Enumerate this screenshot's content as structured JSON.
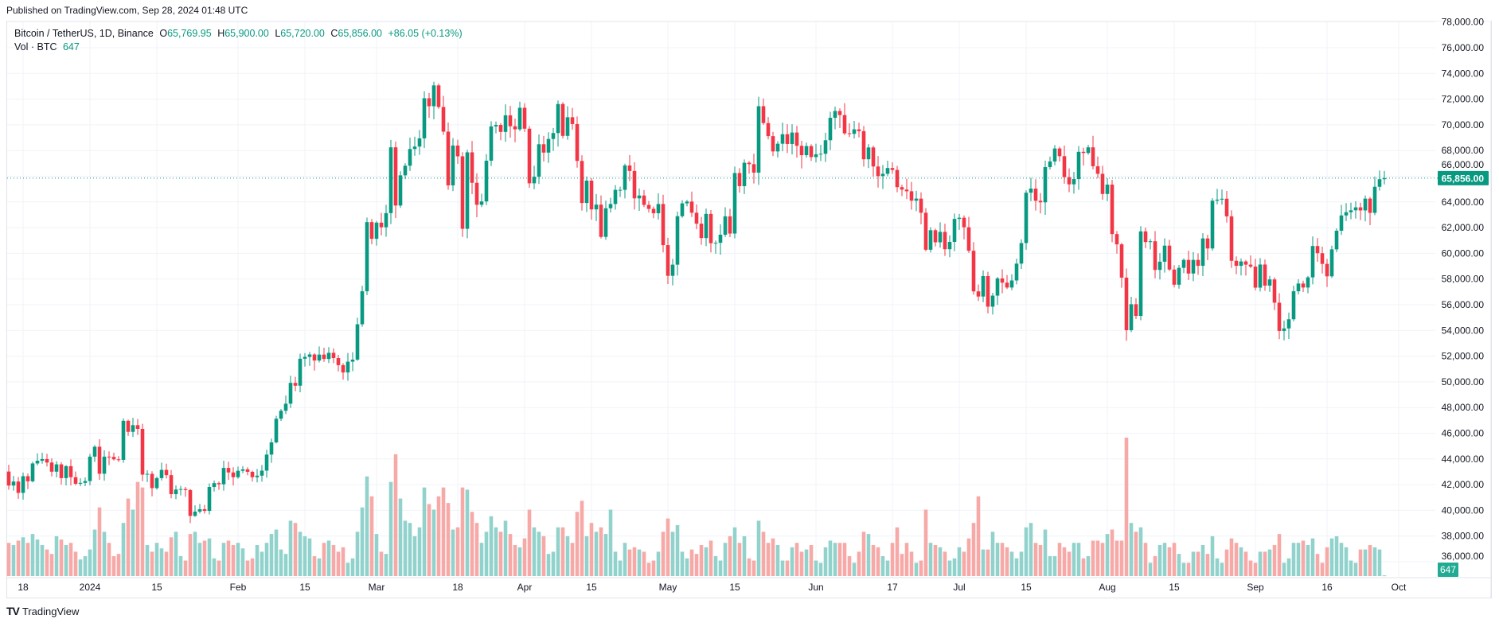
{
  "published": "Published on TradingView.com, Sep 28, 2024 01:48 UTC",
  "legend": {
    "symbol": "Bitcoin / TetherUS, 1D, Binance",
    "o_label": "O",
    "o": "65,769.95",
    "h_label": "H",
    "h": "65,900.00",
    "l_label": "L",
    "l": "65,720.00",
    "c_label": "C",
    "c": "65,856.00",
    "change": "+86.05 (+0.13%)",
    "vol_label": "Vol · BTC",
    "vol": "647"
  },
  "footer": {
    "brand": "TradingView",
    "logo_text": "TV"
  },
  "colors": {
    "up": "#089981",
    "down": "#F23645",
    "vol_up": "#92D2CC",
    "vol_down": "#F7A9A7",
    "grid": "#F0F3FA"
  },
  "chart_data": {
    "type": "candlestick",
    "title": "Bitcoin / TetherUS, 1D, Binance",
    "start_date": "2023-12-15",
    "interval": "1D",
    "ylim": [
      35000,
      78000
    ],
    "price_ticks": [
      "36,000.00",
      "38,000.00",
      "40,000.00",
      "42,000.00",
      "44,000.00",
      "46,000.00",
      "48,000.00",
      "50,000.00",
      "52,000.00",
      "54,000.00",
      "56,000.00",
      "58,000.00",
      "60,000.00",
      "62,000.00",
      "64,000.00",
      "66,000.00",
      "68,000.00",
      "70,000.00",
      "72,000.00",
      "74,000.00",
      "76,000.00",
      "78,000.00"
    ],
    "last_price_label": "65,856.00",
    "last_price": 65856,
    "last_volume_label": "647",
    "time_ticks": [
      {
        "label": "18",
        "date": "2023-12-18"
      },
      {
        "label": "2024",
        "date": "2024-01-01"
      },
      {
        "label": "15",
        "date": "2024-01-15"
      },
      {
        "label": "Feb",
        "date": "2024-02-01"
      },
      {
        "label": "15",
        "date": "2024-02-15"
      },
      {
        "label": "Mar",
        "date": "2024-03-01"
      },
      {
        "label": "18",
        "date": "2024-03-18"
      },
      {
        "label": "Apr",
        "date": "2024-04-01"
      },
      {
        "label": "15",
        "date": "2024-04-15"
      },
      {
        "label": "May",
        "date": "2024-05-01"
      },
      {
        "label": "15",
        "date": "2024-05-15"
      },
      {
        "label": "Jun",
        "date": "2024-06-01"
      },
      {
        "label": "17",
        "date": "2024-06-17"
      },
      {
        "label": "Jul",
        "date": "2024-07-01"
      },
      {
        "label": "15",
        "date": "2024-07-15"
      },
      {
        "label": "Aug",
        "date": "2024-08-01"
      },
      {
        "label": "15",
        "date": "2024-08-15"
      },
      {
        "label": "Sep",
        "date": "2024-09-01"
      },
      {
        "label": "16",
        "date": "2024-09-16"
      },
      {
        "label": "Oct",
        "date": "2024-10-01"
      }
    ],
    "first_open": 43020,
    "close": [
      41930,
      42240,
      41360,
      42660,
      42260,
      43650,
      43860,
      43990,
      43720,
      43010,
      43580,
      42510,
      43440,
      42580,
      42070,
      42140,
      42280,
      44180,
      44950,
      42850,
      44180,
      44160,
      43970,
      43930,
      46970,
      46110,
      46630,
      46340,
      42780,
      42840,
      41730,
      42510,
      43150,
      42740,
      41260,
      41620,
      41660,
      41580,
      39570,
      39900,
      40090,
      39960,
      41820,
      42120,
      42030,
      43300,
      42950,
      42580,
      43080,
      43190,
      43000,
      42580,
      42700,
      43090,
      44340,
      45290,
      47130,
      47750,
      48300,
      49920,
      49700,
      51800,
      51940,
      52130,
      51660,
      52120,
      51780,
      52260,
      51850,
      51300,
      50730,
      51570,
      51730,
      54480,
      57050,
      62430,
      61130,
      62390,
      62030,
      63130,
      68250,
      63720,
      66070,
      66820,
      68120,
      68310,
      68950,
      72070,
      71450,
      73070,
      71390,
      69470,
      65290,
      68390,
      67550,
      61910,
      67860,
      65490,
      63780,
      64040,
      67210,
      69880,
      69990,
      69450,
      70740,
      69890,
      69650,
      71330,
      69700,
      65450,
      65960,
      68490,
      67840,
      68900,
      69360,
      71620,
      69140,
      70590,
      70060,
      67190,
      63920,
      65660,
      63420,
      63790,
      61280,
      63510,
      63840,
      64940,
      64940,
      66840,
      66410,
      64280,
      64500,
      63770,
      63460,
      63120,
      63840,
      60640,
      58250,
      59120,
      62890,
      63890,
      64030,
      63160,
      62310,
      61190,
      63070,
      60790,
      60820,
      61450,
      62880,
      61540,
      66250,
      65230,
      67050,
      66940,
      66280,
      71450,
      70140,
      69120,
      67930,
      68530,
      69270,
      68510,
      69400,
      68370,
      67640,
      68350,
      67490,
      67710,
      67750,
      68800,
      70550,
      71080,
      70760,
      69340,
      69300,
      69650,
      69510,
      67320,
      68240,
      66760,
      66010,
      66190,
      66640,
      66490,
      65150,
      64960,
      64830,
      64100,
      64260,
      63160,
      60280,
      61800,
      60860,
      61670,
      60320,
      60890,
      62680,
      62770,
      62030,
      60200,
      57040,
      56640,
      58230,
      55850,
      56710,
      58050,
      57720,
      57340,
      57890,
      59200,
      60800,
      64720,
      65040,
      64090,
      63970,
      66710,
      67150,
      68160,
      67560,
      65930,
      65370,
      65780,
      67900,
      67810,
      68250,
      66780,
      66190,
      64620,
      65350,
      61500,
      60700,
      58110,
      54020,
      56040,
      55130,
      61710,
      60880,
      60940,
      58710,
      59350,
      60600,
      58740,
      57560,
      58870,
      59490,
      58430,
      59490,
      59030,
      61160,
      60380,
      64100,
      64180,
      64250,
      62880,
      59420,
      59030,
      59370,
      59120,
      58970,
      57330,
      59130,
      57490,
      57970,
      56160,
      53960,
      54160,
      54870,
      57050,
      57650,
      57340,
      58130,
      60570,
      60010,
      59180,
      58210,
      60310,
      61760,
      62950,
      63200,
      63350,
      63580,
      63340,
      64260,
      63150,
      65180,
      65770,
      65856
    ],
    "volume_k": [
      30,
      28,
      32,
      35,
      30,
      38,
      33,
      28,
      24,
      20,
      36,
      33,
      28,
      30,
      22,
      15,
      18,
      24,
      42,
      62,
      40,
      30,
      18,
      20,
      48,
      70,
      60,
      85,
      80,
      28,
      22,
      30,
      25,
      22,
      35,
      40,
      18,
      14,
      38,
      40,
      30,
      32,
      34,
      16,
      14,
      30,
      32,
      28,
      30,
      25,
      14,
      16,
      28,
      22,
      30,
      38,
      42,
      24,
      20,
      50,
      48,
      40,
      36,
      34,
      18,
      16,
      30,
      32,
      28,
      22,
      26,
      12,
      16,
      40,
      62,
      90,
      72,
      38,
      22,
      20,
      85,
      110,
      70,
      50,
      48,
      36,
      44,
      80,
      65,
      60,
      72,
      80,
      66,
      42,
      44,
      80,
      78,
      58,
      48,
      30,
      40,
      54,
      44,
      40,
      50,
      38,
      28,
      26,
      34,
      60,
      44,
      40,
      36,
      20,
      22,
      44,
      44,
      36,
      30,
      58,
      68,
      36,
      48,
      40,
      44,
      38,
      60,
      22,
      14,
      30,
      24,
      26,
      24,
      22,
      12,
      14,
      22,
      40,
      52,
      40,
      46,
      22,
      16,
      24,
      20,
      28,
      26,
      32,
      18,
      14,
      30,
      36,
      44,
      30,
      36,
      16,
      14,
      50,
      40,
      30,
      34,
      28,
      14,
      14,
      26,
      30,
      22,
      24,
      28,
      14,
      12,
      26,
      32,
      30,
      30,
      30,
      18,
      12,
      22,
      40,
      38,
      28,
      26,
      18,
      14,
      30,
      44,
      20,
      30,
      22,
      12,
      14,
      60,
      30,
      28,
      26,
      22,
      14,
      16,
      26,
      22,
      34,
      48,
      72,
      24,
      24,
      40,
      30,
      30,
      26,
      22,
      16,
      22,
      44,
      48,
      30,
      28,
      42,
      18,
      18,
      30,
      26,
      22,
      30,
      30,
      16,
      18,
      32,
      32,
      30,
      38,
      42,
      32,
      32,
      125,
      48,
      40,
      44,
      30,
      12,
      18,
      28,
      30,
      26,
      30,
      20,
      12,
      12,
      22,
      22,
      28,
      20,
      36,
      16,
      12,
      24,
      34,
      30,
      26,
      22,
      14,
      12,
      22,
      22,
      24,
      28,
      38,
      12,
      16,
      30,
      30,
      32,
      28,
      34,
      20,
      12,
      26,
      34,
      36,
      30,
      26,
      14,
      12,
      24,
      24,
      28,
      26,
      24,
      0.647
    ]
  }
}
